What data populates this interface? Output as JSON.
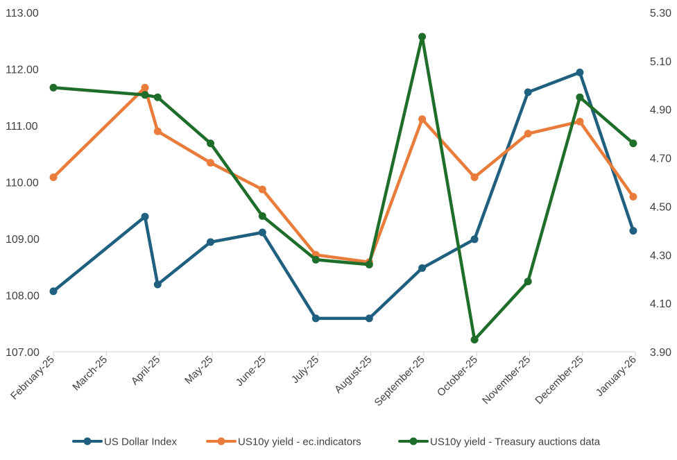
{
  "chart_data": {
    "type": "line",
    "categories": [
      "February-25",
      "March-25",
      "April-25",
      "May-25",
      "June-25",
      "July-25",
      "August-25",
      "September-25",
      "October-25",
      "November-25",
      "December-25",
      "January-26"
    ],
    "y_left": {
      "min": 107,
      "max": 113,
      "ticks": [
        "107.00",
        "108.00",
        "109.00",
        "110.00",
        "111.00",
        "112.00",
        "113.00"
      ]
    },
    "y_right": {
      "min": 3.9,
      "max": 5.3,
      "ticks": [
        "3.90",
        "4.10",
        "4.30",
        "4.50",
        "4.70",
        "4.90",
        "5.10",
        "5.30"
      ]
    },
    "grid": false,
    "legend_position": "bottom",
    "series": [
      {
        "name": "US Dollar Index",
        "axis": "left",
        "color": "#1f5f7f",
        "points": [
          {
            "x": 0.0,
            "y": 108.07
          },
          {
            "x": 1.73,
            "y": 109.39
          },
          {
            "x": 1.97,
            "y": 108.19
          },
          {
            "x": 2.97,
            "y": 108.94
          },
          {
            "x": 3.95,
            "y": 109.11
          },
          {
            "x": 4.96,
            "y": 107.59
          },
          {
            "x": 5.97,
            "y": 107.59
          },
          {
            "x": 6.97,
            "y": 108.48
          },
          {
            "x": 7.96,
            "y": 108.99
          },
          {
            "x": 8.97,
            "y": 111.59
          },
          {
            "x": 9.95,
            "y": 111.94
          },
          {
            "x": 10.96,
            "y": 109.14
          }
        ]
      },
      {
        "name": "US10y yield - ec.indicators",
        "axis": "right",
        "color": "#e97c3a",
        "points": [
          {
            "x": 0.0,
            "y": 4.62
          },
          {
            "x": 1.73,
            "y": 4.99
          },
          {
            "x": 1.97,
            "y": 4.81
          },
          {
            "x": 2.97,
            "y": 4.68
          },
          {
            "x": 3.95,
            "y": 4.57
          },
          {
            "x": 4.96,
            "y": 4.3
          },
          {
            "x": 5.97,
            "y": 4.27
          },
          {
            "x": 6.97,
            "y": 4.86
          },
          {
            "x": 7.96,
            "y": 4.62
          },
          {
            "x": 8.97,
            "y": 4.8
          },
          {
            "x": 9.95,
            "y": 4.85
          },
          {
            "x": 10.96,
            "y": 4.54
          }
        ]
      },
      {
        "name": "US10y yield - Treasury auctions data",
        "axis": "right",
        "color": "#1e6e2a",
        "points": [
          {
            "x": 0.0,
            "y": 4.99
          },
          {
            "x": 1.73,
            "y": 4.96
          },
          {
            "x": 1.97,
            "y": 4.95
          },
          {
            "x": 2.97,
            "y": 4.76
          },
          {
            "x": 3.95,
            "y": 4.46
          },
          {
            "x": 4.96,
            "y": 4.28
          },
          {
            "x": 5.97,
            "y": 4.26
          },
          {
            "x": 6.97,
            "y": 5.2
          },
          {
            "x": 7.96,
            "y": 3.95
          },
          {
            "x": 8.97,
            "y": 4.19
          },
          {
            "x": 9.95,
            "y": 4.95
          },
          {
            "x": 10.96,
            "y": 4.76
          }
        ]
      }
    ]
  }
}
